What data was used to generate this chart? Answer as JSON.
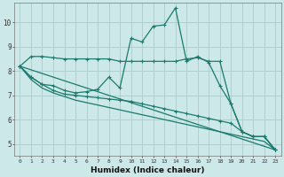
{
  "xlabel": "Humidex (Indice chaleur)",
  "background_color": "#cde8e8",
  "grid_color": "#b0d0d0",
  "line_color": "#1a7a6e",
  "xlim": [
    -0.5,
    23.5
  ],
  "ylim": [
    4.5,
    10.8
  ],
  "yticks": [
    5,
    6,
    7,
    8,
    9,
    10
  ],
  "xticks": [
    0,
    1,
    2,
    3,
    4,
    5,
    6,
    7,
    8,
    9,
    10,
    11,
    12,
    13,
    14,
    15,
    16,
    17,
    18,
    19,
    20,
    21,
    22,
    23
  ],
  "line1_x": [
    0,
    1,
    2,
    3,
    4,
    5,
    6,
    7,
    8,
    9,
    10,
    11,
    12,
    13,
    14,
    15,
    16,
    17,
    18,
    19,
    20,
    21,
    22,
    23
  ],
  "line1_y": [
    8.2,
    8.6,
    8.6,
    8.55,
    8.5,
    8.5,
    8.5,
    8.5,
    8.5,
    8.4,
    8.4,
    8.4,
    8.4,
    8.4,
    8.4,
    8.5,
    8.55,
    8.4,
    8.4,
    6.65,
    5.5,
    5.3,
    5.3,
    4.75
  ],
  "line2_x": [
    0,
    1,
    2,
    3,
    4,
    5,
    6,
    7,
    8,
    9,
    10,
    11,
    12,
    13,
    14,
    15,
    16,
    17,
    18,
    19,
    20,
    21,
    22,
    23
  ],
  "line2_y": [
    8.2,
    7.75,
    7.45,
    7.4,
    7.2,
    7.1,
    7.15,
    7.25,
    7.75,
    7.3,
    9.35,
    9.2,
    9.85,
    9.9,
    10.6,
    8.4,
    8.6,
    8.35,
    7.4,
    6.65,
    5.5,
    5.3,
    5.3,
    4.75
  ],
  "line3_x": [
    0,
    1,
    2,
    3,
    4,
    5,
    6,
    7,
    8,
    9,
    10,
    11,
    12,
    13,
    14,
    15,
    16,
    17,
    18,
    19,
    20,
    21,
    22,
    23
  ],
  "line3_y": [
    8.2,
    7.75,
    7.45,
    7.2,
    7.05,
    7.0,
    6.95,
    6.9,
    6.85,
    6.8,
    6.75,
    6.65,
    6.55,
    6.45,
    6.35,
    6.25,
    6.15,
    6.05,
    5.95,
    5.85,
    5.5,
    5.3,
    5.3,
    4.75
  ],
  "line4_x": [
    0,
    23
  ],
  "line4_y": [
    8.2,
    4.75
  ],
  "line5_x": [
    0,
    1,
    2,
    3,
    4,
    5,
    6,
    7,
    8,
    9,
    10,
    11,
    12,
    13,
    14,
    15,
    16,
    17,
    18,
    19,
    20,
    21,
    22,
    23
  ],
  "line5_y": [
    8.2,
    7.65,
    7.3,
    7.1,
    6.95,
    6.8,
    6.7,
    6.6,
    6.5,
    6.4,
    6.3,
    6.2,
    6.1,
    6.0,
    5.9,
    5.8,
    5.7,
    5.6,
    5.5,
    5.4,
    5.3,
    5.2,
    5.1,
    4.75
  ]
}
